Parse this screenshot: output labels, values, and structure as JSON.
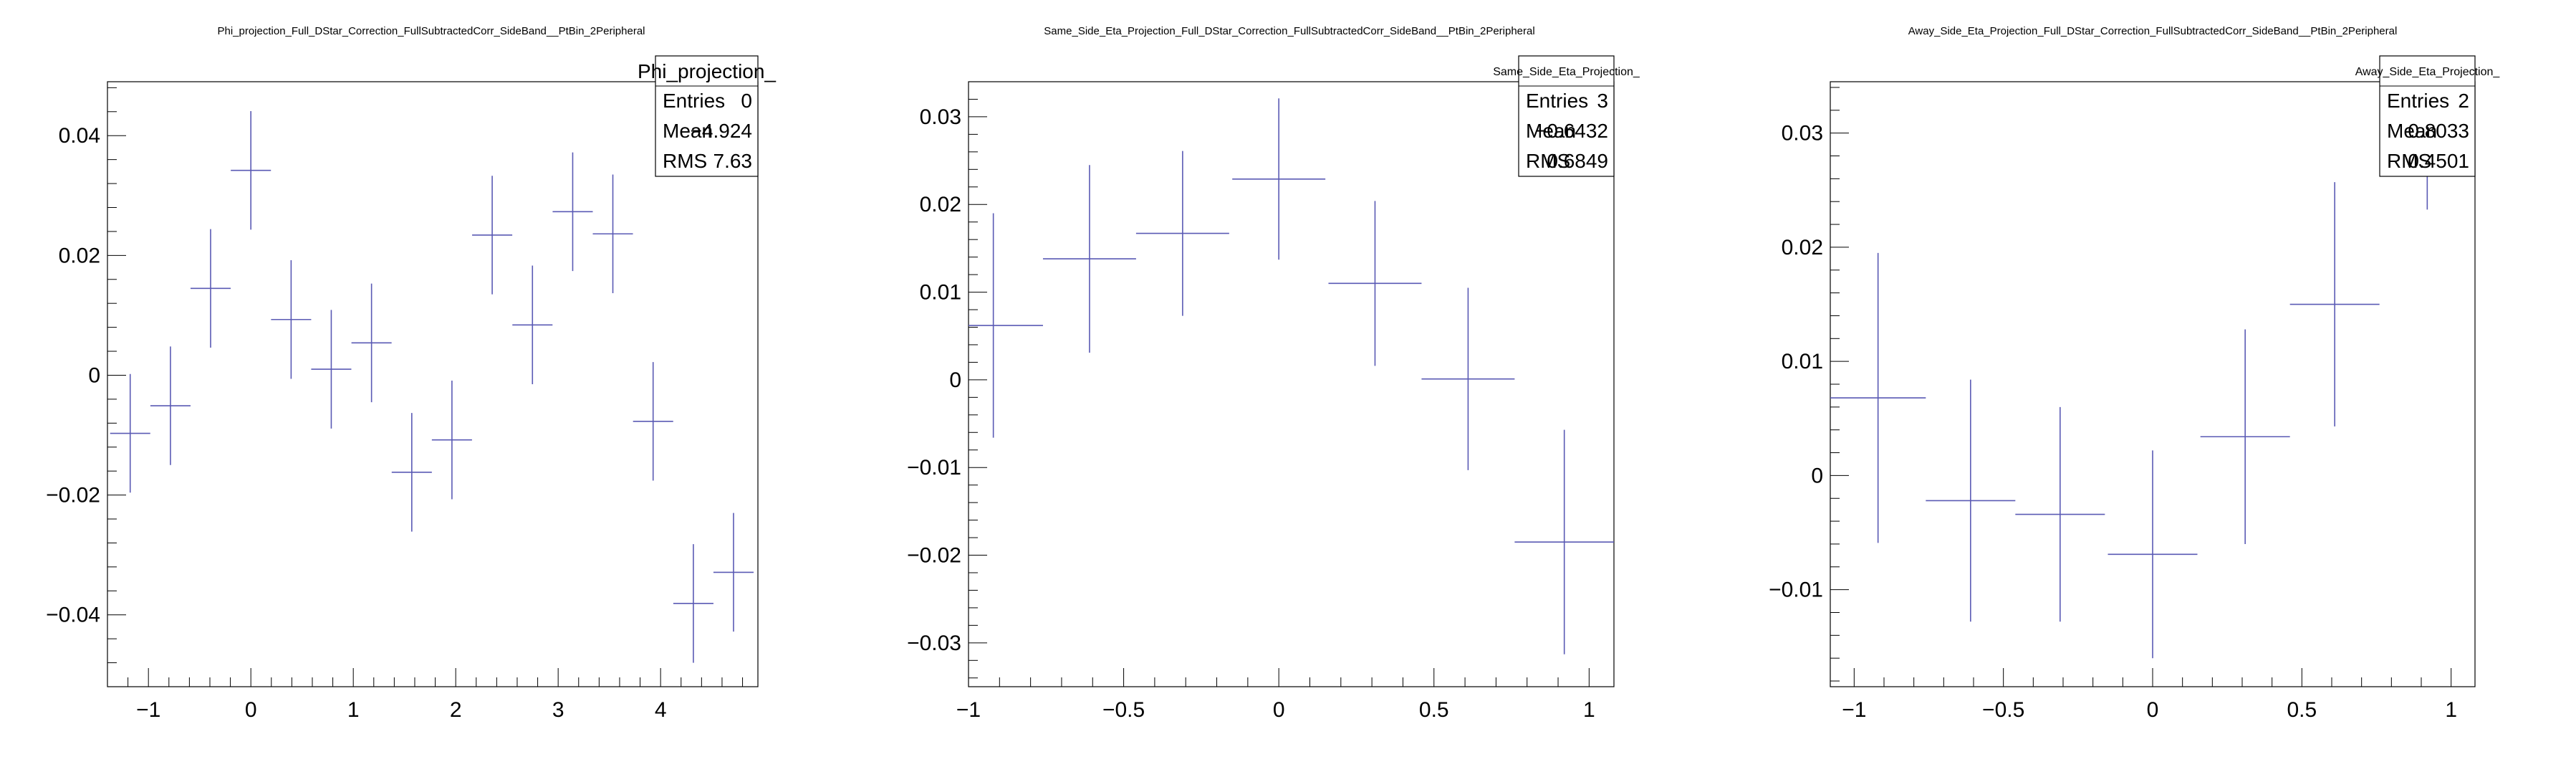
{
  "colors": {
    "marker": "#5a5ab4",
    "axis": "#000000",
    "background": "#ffffff"
  },
  "chart_data": [
    {
      "type": "scatter",
      "title": "Phi_projection_Full_DStar_Correction_FullSubtractedCorr_SideBand__PtBin_2Peripheral",
      "xlabel": "",
      "ylabel": "",
      "xlim": [
        -1.4,
        4.95
      ],
      "ylim": [
        -0.052,
        0.049
      ],
      "grid": false,
      "legend_position": "top-right",
      "xticks": [
        -1,
        0,
        1,
        2,
        3,
        4
      ],
      "xtick_labels": [
        "−1",
        "0",
        "1",
        "2",
        "3",
        "4"
      ],
      "yticks": [
        -0.04,
        -0.02,
        0,
        0.02,
        0.04
      ],
      "ytick_labels": [
        "−0.04",
        "−0.02",
        "0",
        "0.02",
        "0.04"
      ],
      "stats": {
        "name": "Phi_projection_",
        "entries": "0",
        "mean": "−4.924",
        "rms": "7.63"
      },
      "points": [
        {
          "x": -1.178,
          "xerr": 0.196,
          "y": -0.0097,
          "yerr": 0.0099
        },
        {
          "x": -0.785,
          "xerr": 0.196,
          "y": -0.0051,
          "yerr": 0.0099
        },
        {
          "x": -0.393,
          "xerr": 0.196,
          "y": 0.0145,
          "yerr": 0.0099
        },
        {
          "x": 0.0,
          "xerr": 0.196,
          "y": 0.0342,
          "yerr": 0.0099
        },
        {
          "x": 0.393,
          "xerr": 0.196,
          "y": 0.0093,
          "yerr": 0.0099
        },
        {
          "x": 0.785,
          "xerr": 0.196,
          "y": 0.001,
          "yerr": 0.0099
        },
        {
          "x": 1.178,
          "xerr": 0.196,
          "y": 0.0054,
          "yerr": 0.0099
        },
        {
          "x": 1.571,
          "xerr": 0.196,
          "y": -0.0162,
          "yerr": 0.0099
        },
        {
          "x": 1.963,
          "xerr": 0.196,
          "y": -0.0108,
          "yerr": 0.0099
        },
        {
          "x": 2.356,
          "xerr": 0.196,
          "y": 0.0234,
          "yerr": 0.0099
        },
        {
          "x": 2.749,
          "xerr": 0.196,
          "y": 0.0084,
          "yerr": 0.0099
        },
        {
          "x": 3.142,
          "xerr": 0.196,
          "y": 0.0273,
          "yerr": 0.0099
        },
        {
          "x": 3.534,
          "xerr": 0.196,
          "y": 0.0236,
          "yerr": 0.0099
        },
        {
          "x": 3.927,
          "xerr": 0.196,
          "y": -0.0077,
          "yerr": 0.0099
        },
        {
          "x": 4.32,
          "xerr": 0.196,
          "y": -0.0381,
          "yerr": 0.0099
        },
        {
          "x": 4.712,
          "xerr": 0.196,
          "y": -0.0329,
          "yerr": 0.0099
        }
      ]
    },
    {
      "type": "scatter",
      "title": "Same_Side_Eta_Projection_Full_DStar_Correction_FullSubtractedCorr_SideBand__PtBin_2Peripheral",
      "xlabel": "",
      "ylabel": "",
      "xlim": [
        -1.0,
        1.08
      ],
      "ylim": [
        -0.035,
        0.034
      ],
      "grid": false,
      "legend_position": "top-right",
      "xticks": [
        -1,
        -0.5,
        0,
        0.5,
        1
      ],
      "xtick_labels": [
        "−1",
        "−0.5",
        "0",
        "0.5",
        "1"
      ],
      "yticks": [
        -0.03,
        -0.02,
        -0.01,
        0,
        0.01,
        0.02,
        0.03
      ],
      "ytick_labels": [
        "−0.03",
        "−0.02",
        "−0.01",
        "0",
        "0.01",
        "0.02",
        "0.03"
      ],
      "stats": {
        "name": "Same_Side_Eta_Projection_",
        "entries": "3",
        "mean": "−0.6432",
        "rms": "0.6849"
      },
      "points": [
        {
          "x": -0.92,
          "xerr": 0.16,
          "y": 0.0062,
          "yerr": 0.0128
        },
        {
          "x": -0.61,
          "xerr": 0.15,
          "y": 0.0138,
          "yerr": 0.0107
        },
        {
          "x": -0.31,
          "xerr": 0.15,
          "y": 0.0167,
          "yerr": 0.0094
        },
        {
          "x": 0.0,
          "xerr": 0.15,
          "y": 0.0229,
          "yerr": 0.0092
        },
        {
          "x": 0.31,
          "xerr": 0.15,
          "y": 0.011,
          "yerr": 0.0094
        },
        {
          "x": 0.61,
          "xerr": 0.15,
          "y": 0.0001,
          "yerr": 0.0104
        },
        {
          "x": 0.92,
          "xerr": 0.16,
          "y": -0.0185,
          "yerr": 0.0128
        }
      ]
    },
    {
      "type": "scatter",
      "title": "Away_Side_Eta_Projection_Full_DStar_Correction_FullSubtractedCorr_SideBand__PtBin_2Peripheral",
      "xlabel": "",
      "ylabel": "",
      "xlim": [
        -1.08,
        1.08
      ],
      "ylim": [
        -0.0185,
        0.0345
      ],
      "grid": false,
      "legend_position": "top-right",
      "xticks": [
        -1,
        -0.5,
        0,
        0.5,
        1
      ],
      "xtick_labels": [
        "−1",
        "−0.5",
        "0",
        "0.5",
        "1"
      ],
      "yticks": [
        -0.01,
        0,
        0.01,
        0.02,
        0.03
      ],
      "ytick_labels": [
        "−0.01",
        "0",
        "0.01",
        "0.02",
        "0.03"
      ],
      "stats": {
        "name": "Away_Side_Eta_Projection_",
        "entries": "2",
        "mean": "0.8033",
        "rms": "0.4501"
      },
      "points": [
        {
          "x": -0.92,
          "xerr": 0.16,
          "y": 0.0068,
          "yerr": 0.0127
        },
        {
          "x": -0.61,
          "xerr": 0.15,
          "y": -0.0022,
          "yerr": 0.0106
        },
        {
          "x": -0.31,
          "xerr": 0.15,
          "y": -0.0034,
          "yerr": 0.0094
        },
        {
          "x": 0.0,
          "xerr": 0.15,
          "y": -0.0069,
          "yerr": 0.0091
        },
        {
          "x": 0.31,
          "xerr": 0.15,
          "y": 0.0034,
          "yerr": 0.0094
        },
        {
          "x": 0.61,
          "xerr": 0.15,
          "y": 0.015,
          "yerr": 0.0107
        },
        {
          "x": 0.92,
          "xerr": 0.16,
          "y": 0.036,
          "yerr": 0.0127
        }
      ]
    }
  ]
}
